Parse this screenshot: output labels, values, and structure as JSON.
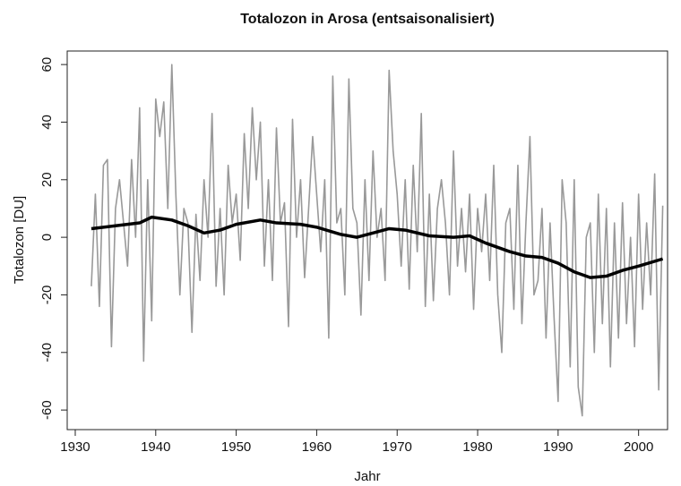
{
  "chart_data": {
    "type": "line",
    "title": "Totalozon in Arosa (entsaisonalisiert)",
    "x_label": "Jahr",
    "y_label": "Totalozon [DU]",
    "xlim": [
      1929.0,
      2003.6
    ],
    "ylim": [
      -66.8,
      64.7
    ],
    "xticks": [
      1930,
      1940,
      1950,
      1960,
      1970,
      1980,
      1990,
      2000
    ],
    "yticks": [
      -60,
      -40,
      -20,
      0,
      20,
      40,
      60
    ],
    "series": [
      {
        "color": "#999999",
        "x": [
          1932,
          1932.5,
          1933,
          1933.5,
          1934,
          1934.5,
          1935,
          1935.5,
          1936,
          1936.5,
          1937,
          1937.5,
          1938,
          1938.5,
          1939,
          1939.5,
          1940,
          1940.5,
          1941,
          1941.5,
          1942,
          1942.5,
          1943,
          1943.5,
          1944,
          1944.5,
          1945,
          1945.5,
          1946,
          1946.5,
          1947,
          1947.5,
          1948,
          1948.5,
          1949,
          1949.5,
          1950,
          1950.5,
          1951,
          1951.5,
          1952,
          1952.5,
          1953,
          1953.5,
          1954,
          1954.5,
          1955,
          1955.5,
          1956,
          1956.5,
          1957,
          1957.5,
          1958,
          1958.5,
          1959,
          1959.5,
          1960,
          1960.5,
          1961,
          1961.5,
          1962,
          1962.5,
          1963,
          1963.5,
          1964,
          1964.5,
          1965,
          1965.5,
          1966,
          1966.5,
          1967,
          1967.5,
          1968,
          1968.5,
          1969,
          1969.5,
          1970,
          1970.5,
          1971,
          1971.5,
          1972,
          1972.5,
          1973,
          1973.5,
          1974,
          1974.5,
          1975,
          1975.5,
          1976,
          1976.5,
          1977,
          1977.5,
          1978,
          1978.5,
          1979,
          1979.5,
          1980,
          1980.5,
          1981,
          1981.5,
          1982,
          1982.5,
          1983,
          1983.5,
          1984,
          1984.5,
          1985,
          1985.5,
          1986,
          1986.5,
          1987,
          1987.5,
          1988,
          1988.5,
          1989,
          1989.5,
          1990,
          1990.5,
          1991,
          1991.5,
          1992,
          1992.5,
          1993,
          1993.5,
          1994,
          1994.5,
          1995,
          1995.5,
          1996,
          1996.5,
          1997,
          1997.5,
          1998,
          1998.5,
          1999,
          1999.5,
          2000,
          2000.5,
          2001,
          2001.5,
          2002,
          2002.5,
          2003
        ],
        "values": [
          -17,
          15,
          -24,
          25,
          27,
          -38,
          10,
          20,
          5,
          -10,
          27,
          0,
          45,
          -43,
          20,
          -29,
          48,
          35,
          47,
          10,
          60,
          15,
          -20,
          10,
          5,
          -33,
          8,
          -15,
          20,
          0,
          43,
          -17,
          10,
          -20,
          25,
          5,
          15,
          -8,
          36,
          10,
          45,
          20,
          40,
          -10,
          20,
          -15,
          38,
          5,
          12,
          -31,
          41,
          0,
          20,
          -14,
          10,
          35,
          15,
          -5,
          20,
          -35,
          56,
          5,
          10,
          -20,
          55,
          10,
          5,
          -27,
          20,
          -15,
          30,
          0,
          10,
          -15,
          58,
          30,
          15,
          -10,
          20,
          -18,
          25,
          -5,
          43,
          -24,
          15,
          -22,
          10,
          20,
          5,
          -20,
          30,
          -10,
          10,
          -12,
          15,
          -25,
          10,
          -5,
          15,
          -15,
          25,
          -20,
          -40,
          5,
          10,
          -25,
          25,
          -30,
          5,
          35,
          -20,
          -15,
          10,
          -35,
          5,
          -28,
          -57,
          20,
          5,
          -45,
          20,
          -52,
          -62,
          0,
          5,
          -40,
          15,
          -30,
          10,
          -45,
          5,
          -35,
          12,
          -30,
          0,
          -38,
          15,
          -25,
          5,
          -20,
          22,
          -53,
          11
        ]
      },
      {
        "color": "#000000",
        "x": [
          1932,
          1935,
          1938,
          1939.5,
          1942,
          1944,
          1946,
          1948,
          1950,
          1953,
          1955,
          1958,
          1960,
          1963,
          1965,
          1967,
          1969,
          1971,
          1974,
          1977,
          1979,
          1981,
          1984,
          1986,
          1988,
          1990,
          1992,
          1994,
          1996,
          1998,
          2000,
          2003
        ],
        "values": [
          3,
          4,
          5,
          7,
          6,
          4,
          1.5,
          2.5,
          4.5,
          6,
          5,
          4.5,
          3.5,
          1,
          0,
          1.5,
          3,
          2.5,
          0.5,
          0,
          0.5,
          -2,
          -5,
          -6.5,
          -7,
          -9,
          -12,
          -14,
          -13.5,
          -11.5,
          -10,
          -7.5
        ]
      }
    ]
  }
}
